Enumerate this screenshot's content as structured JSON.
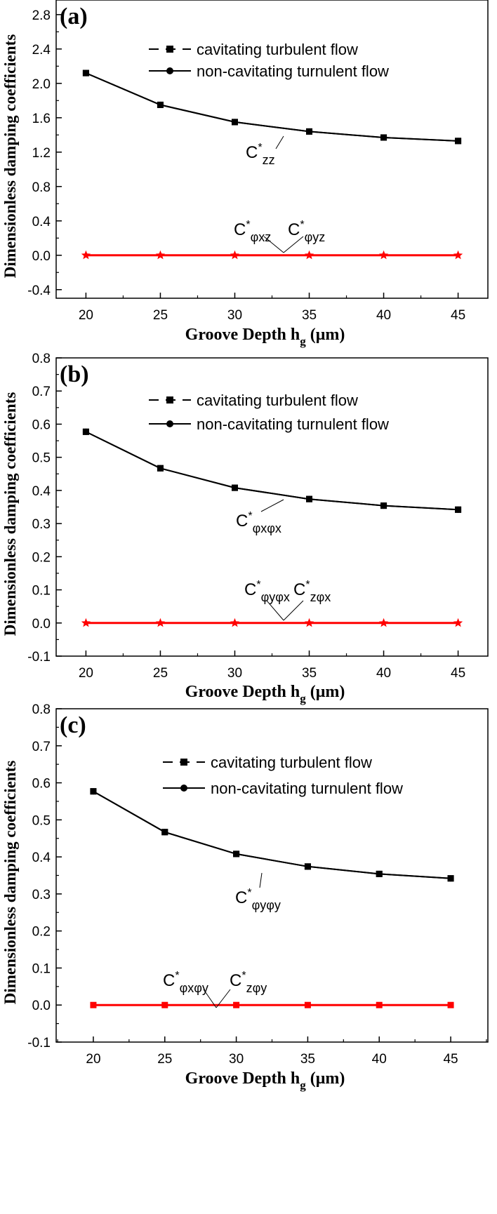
{
  "chart_data": [
    {
      "type": "line",
      "panel_label": "(a)",
      "xlabel_main": "Groove Depth h",
      "xlabel_sub": "g",
      "xlabel_unit": " (μm)",
      "ylabel": "Dimensionless damping coefficients",
      "x": [
        20,
        25,
        30,
        35,
        40,
        45
      ],
      "xlim": [
        18,
        47
      ],
      "ylim": [
        -0.5,
        2.97
      ],
      "yticks": [
        -0.4,
        0.0,
        0.4,
        0.8,
        1.2,
        1.6,
        2.0,
        2.4,
        2.8
      ],
      "yticklabels": [
        "-0.4",
        "0.0",
        "0.4",
        "0.8",
        "1.2",
        "1.6",
        "2.0",
        "2.4",
        "2.8"
      ],
      "xticklabels": [
        "20",
        "25",
        "30",
        "35",
        "40",
        "45"
      ],
      "legend": [
        "cavitating turbulent flow",
        "non-cavitating turnulent flow"
      ],
      "series": [
        {
          "name": "cavitating turbulent flow",
          "values": [
            2.12,
            1.75,
            1.55,
            1.44,
            1.37,
            1.33
          ],
          "color": "#000000",
          "marker": "square"
        },
        {
          "name": "non-cavitating turnulent flow",
          "values": [
            2.12,
            1.75,
            1.55,
            1.44,
            1.37,
            1.33
          ],
          "color": "#000000",
          "marker": "circle"
        },
        {
          "values": [
            0,
            0,
            0,
            0,
            0,
            0
          ],
          "color": "#ff0000",
          "marker": "star"
        }
      ],
      "annotations": [
        {
          "base": "C",
          "sup": "*",
          "sub": "zz"
        },
        {
          "base": "C",
          "sup": "*",
          "sub": "φxz"
        },
        {
          "base": "C",
          "sup": "*",
          "sub": "φyz"
        }
      ]
    },
    {
      "type": "line",
      "panel_label": "(b)",
      "xlabel_main": "Groove Depth h",
      "xlabel_sub": "g",
      "xlabel_unit": " (μm)",
      "ylabel": "Dimensionless damping coefficients",
      "x": [
        20,
        25,
        30,
        35,
        40,
        45
      ],
      "xlim": [
        18,
        47
      ],
      "ylim": [
        -0.1,
        0.8
      ],
      "yticks": [
        -0.1,
        0.0,
        0.1,
        0.2,
        0.3,
        0.4,
        0.5,
        0.6,
        0.7,
        0.8
      ],
      "yticklabels": [
        "-0.1",
        "0.0",
        "0.1",
        "0.2",
        "0.3",
        "0.4",
        "0.5",
        "0.6",
        "0.7",
        "0.8"
      ],
      "xticklabels": [
        "20",
        "25",
        "30",
        "35",
        "40",
        "45"
      ],
      "legend": [
        "cavitating turbulent flow",
        "non-cavitating turnulent flow"
      ],
      "series": [
        {
          "name": "cavitating turbulent flow",
          "values": [
            0.577,
            0.467,
            0.408,
            0.374,
            0.354,
            0.342
          ],
          "color": "#000000",
          "marker": "square"
        },
        {
          "name": "non-cavitating turnulent flow",
          "values": [
            0.577,
            0.467,
            0.408,
            0.374,
            0.354,
            0.342
          ],
          "color": "#000000",
          "marker": "circle"
        },
        {
          "values": [
            0,
            0,
            0,
            0,
            0,
            0
          ],
          "color": "#ff0000",
          "marker": "star"
        }
      ],
      "annotations": [
        {
          "base": "C",
          "sup": "*",
          "sub": "φxφx"
        },
        {
          "base": "C",
          "sup": "*",
          "sub": "φyφx"
        },
        {
          "base": "C",
          "sup": "*",
          "sub": "zφx"
        }
      ]
    },
    {
      "type": "line",
      "panel_label": "(c)",
      "xlabel_main": "Groove Depth h",
      "xlabel_sub": "g",
      "xlabel_unit": " (μm)",
      "ylabel": "Dimensionless damping coefficients",
      "x": [
        20,
        25,
        30,
        35,
        40,
        45
      ],
      "xlim": [
        17.4,
        47.6
      ],
      "ylim": [
        -0.1,
        0.8
      ],
      "yticks": [
        -0.1,
        0.0,
        0.1,
        0.2,
        0.3,
        0.4,
        0.5,
        0.6,
        0.7,
        0.8
      ],
      "yticklabels": [
        "-0.1",
        "0.0",
        "0.1",
        "0.2",
        "0.3",
        "0.4",
        "0.5",
        "0.6",
        "0.7",
        "0.8"
      ],
      "xticklabels": [
        "20",
        "25",
        "30",
        "35",
        "40",
        "45"
      ],
      "legend": [
        "cavitating turbulent flow",
        "non-cavitating turnulent flow"
      ],
      "series": [
        {
          "name": "cavitating turbulent flow",
          "values": [
            0.577,
            0.467,
            0.408,
            0.374,
            0.354,
            0.342
          ],
          "color": "#000000",
          "marker": "square"
        },
        {
          "name": "non-cavitating turnulent flow",
          "values": [
            0.577,
            0.467,
            0.408,
            0.374,
            0.354,
            0.342
          ],
          "color": "#000000",
          "marker": "circle"
        },
        {
          "values": [
            0,
            0,
            0,
            0,
            0,
            0
          ],
          "color": "#ff0000",
          "marker": "square"
        }
      ],
      "annotations": [
        {
          "base": "C",
          "sup": "*",
          "sub": "φyφy"
        },
        {
          "base": "C",
          "sup": "*",
          "sub": "φxφy"
        },
        {
          "base": "C",
          "sup": "*",
          "sub": "zφy"
        }
      ]
    }
  ]
}
